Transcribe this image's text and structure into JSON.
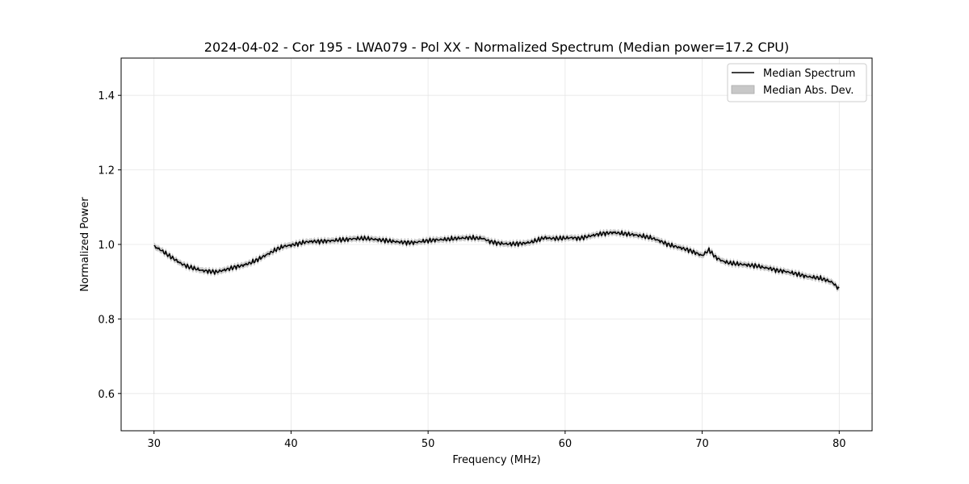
{
  "chart_data": {
    "type": "line",
    "title": "2024-04-02 - Cor 195 - LWA079 - Pol XX - Normalized Spectrum (Median power=17.2 CPU)",
    "xlabel": "Frequency (MHz)",
    "ylabel": "Normalized Power",
    "xlim": [
      27.6,
      82.4
    ],
    "ylim": [
      0.5,
      1.5
    ],
    "xticks": [
      30,
      40,
      50,
      60,
      70,
      80
    ],
    "yticks": [
      0.6,
      0.8,
      1.0,
      1.2,
      1.4
    ],
    "xtick_labels": [
      "30",
      "40",
      "50",
      "60",
      "70",
      "80"
    ],
    "ytick_labels": [
      "0.6",
      "0.8",
      "1.0",
      "1.2",
      "1.4"
    ],
    "grid": true,
    "legend_position": "top-right",
    "series": [
      {
        "name": "Median Spectrum",
        "color": "#000000",
        "x": [
          30,
          30.5,
          31,
          31.5,
          32,
          32.5,
          33,
          33.5,
          34,
          34.5,
          35,
          35.5,
          36,
          36.5,
          37,
          37.5,
          38,
          38.5,
          39,
          39.5,
          40,
          40.5,
          41,
          41.5,
          42,
          42.5,
          43,
          43.5,
          44,
          44.5,
          45,
          45.5,
          46,
          46.5,
          47,
          47.5,
          48,
          48.5,
          49,
          49.5,
          50,
          50.5,
          51,
          51.5,
          52,
          52.5,
          53,
          53.5,
          54,
          54.5,
          55,
          55.5,
          56,
          56.5,
          57,
          57.5,
          58,
          58.5,
          59,
          59.5,
          60,
          60.5,
          61,
          61.5,
          62,
          62.5,
          63,
          63.5,
          64,
          64.5,
          65,
          65.5,
          66,
          66.5,
          67,
          67.5,
          68,
          68.5,
          69,
          69.5,
          70,
          70.5,
          71,
          71.5,
          72,
          72.5,
          73,
          73.5,
          74,
          74.5,
          75,
          75.5,
          76,
          76.5,
          77,
          77.5,
          78,
          78.5,
          79,
          79.5,
          80
        ],
        "values": [
          0.995,
          0.985,
          0.972,
          0.96,
          0.948,
          0.94,
          0.935,
          0.93,
          0.928,
          0.926,
          0.93,
          0.935,
          0.94,
          0.944,
          0.95,
          0.958,
          0.968,
          0.978,
          0.988,
          0.995,
          0.998,
          1.002,
          1.006,
          1.008,
          1.008,
          1.009,
          1.01,
          1.012,
          1.013,
          1.015,
          1.016,
          1.016,
          1.014,
          1.012,
          1.01,
          1.008,
          1.006,
          1.005,
          1.005,
          1.008,
          1.01,
          1.012,
          1.013,
          1.014,
          1.016,
          1.017,
          1.018,
          1.017,
          1.016,
          1.008,
          1.004,
          1.002,
          1.001,
          1.002,
          1.003,
          1.006,
          1.012,
          1.018,
          1.016,
          1.016,
          1.017,
          1.018,
          1.016,
          1.02,
          1.024,
          1.028,
          1.03,
          1.032,
          1.03,
          1.028,
          1.026,
          1.023,
          1.02,
          1.015,
          1.008,
          1.0,
          0.995,
          0.99,
          0.985,
          0.978,
          0.97,
          0.985,
          0.965,
          0.955,
          0.95,
          0.948,
          0.946,
          0.944,
          0.942,
          0.938,
          0.935,
          0.93,
          0.928,
          0.924,
          0.92,
          0.915,
          0.912,
          0.91,
          0.905,
          0.898,
          0.88
        ]
      },
      {
        "name": "Median Abs. Dev.",
        "color": "#c8c8c8",
        "mad": 0.008
      }
    ]
  }
}
